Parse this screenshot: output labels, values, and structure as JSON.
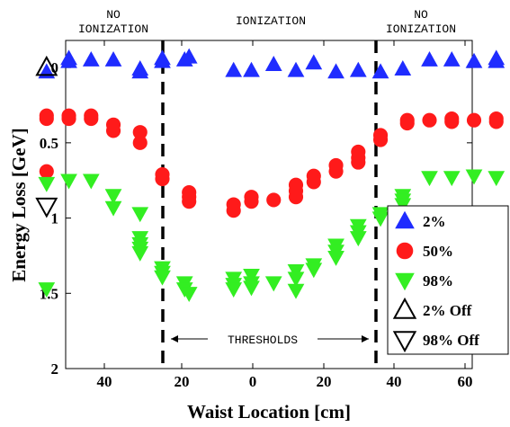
{
  "chart_data": {
    "type": "scatter",
    "xlabel": "Waist Location [cm]",
    "ylabel": "Energy Loss [GeV]",
    "x_tick_labels": [
      "40",
      "20",
      "0",
      "20",
      "40",
      "60"
    ],
    "y_tick_labels": [
      "0",
      "0.5",
      "1",
      "1.5",
      "2"
    ],
    "ylim": [
      0,
      2
    ],
    "y_inverted": true,
    "regions": {
      "left": "NO IONIZATION",
      "center": "IONIZATION",
      "right": "NO IONIZATION"
    },
    "threshold_label": "THRESHOLDS",
    "legend_placement": "right",
    "series": [
      {
        "name": "2%",
        "marker": "triangle-up",
        "color": "#1f2cff",
        "filled": true,
        "points": [
          {
            "x": -46,
            "y": 0.03
          },
          {
            "x": -41,
            "y": -0.06
          },
          {
            "x": -41,
            "y": -0.04
          },
          {
            "x": -36,
            "y": -0.05
          },
          {
            "x": -31,
            "y": -0.05
          },
          {
            "x": -25,
            "y": 0.01
          },
          {
            "x": -25,
            "y": 0.03
          },
          {
            "x": -20,
            "y": -0.04
          },
          {
            "x": -20,
            "y": -0.06
          },
          {
            "x": -15,
            "y": -0.05
          },
          {
            "x": -14,
            "y": -0.07
          },
          {
            "x": -4,
            "y": 0.02
          },
          {
            "x": 0,
            "y": 0.02
          },
          {
            "x": 5,
            "y": -0.02
          },
          {
            "x": 10,
            "y": 0.02
          },
          {
            "x": 14,
            "y": -0.03
          },
          {
            "x": 19,
            "y": 0.03
          },
          {
            "x": 24,
            "y": 0.02
          },
          {
            "x": 29,
            "y": 0.03
          },
          {
            "x": 34,
            "y": 0.01
          },
          {
            "x": 40,
            "y": -0.05
          },
          {
            "x": 45,
            "y": -0.05
          },
          {
            "x": 50,
            "y": -0.04
          },
          {
            "x": 55,
            "y": -0.04
          },
          {
            "x": 55,
            "y": -0.06
          }
        ]
      },
      {
        "name": "50%",
        "marker": "circle",
        "color": "#ff1a1a",
        "filled": true,
        "points": [
          {
            "x": -46,
            "y": 0.34
          },
          {
            "x": -46,
            "y": 0.32
          },
          {
            "x": -41,
            "y": 0.32
          },
          {
            "x": -41,
            "y": 0.34
          },
          {
            "x": -36,
            "y": 0.32
          },
          {
            "x": -36,
            "y": 0.34
          },
          {
            "x": -31,
            "y": 0.38
          },
          {
            "x": -31,
            "y": 0.42
          },
          {
            "x": -25,
            "y": 0.43
          },
          {
            "x": -25,
            "y": 0.5
          },
          {
            "x": -46,
            "y": 0.69
          },
          {
            "x": -20,
            "y": 0.71
          },
          {
            "x": -20,
            "y": 0.74
          },
          {
            "x": -14,
            "y": 0.83
          },
          {
            "x": -14,
            "y": 0.86
          },
          {
            "x": -14,
            "y": 0.89
          },
          {
            "x": -4,
            "y": 0.91
          },
          {
            "x": -4,
            "y": 0.95
          },
          {
            "x": 0,
            "y": 0.86
          },
          {
            "x": 0,
            "y": 0.89
          },
          {
            "x": 5,
            "y": 0.88
          },
          {
            "x": 10,
            "y": 0.78
          },
          {
            "x": 10,
            "y": 0.82
          },
          {
            "x": 10,
            "y": 0.86
          },
          {
            "x": 14,
            "y": 0.72
          },
          {
            "x": 14,
            "y": 0.76
          },
          {
            "x": 19,
            "y": 0.65
          },
          {
            "x": 19,
            "y": 0.69
          },
          {
            "x": 24,
            "y": 0.56
          },
          {
            "x": 24,
            "y": 0.6
          },
          {
            "x": 24,
            "y": 0.63
          },
          {
            "x": 29,
            "y": 0.45
          },
          {
            "x": 29,
            "y": 0.48
          },
          {
            "x": 35,
            "y": 0.37
          },
          {
            "x": 35,
            "y": 0.35
          },
          {
            "x": 40,
            "y": 0.35
          },
          {
            "x": 45,
            "y": 0.36
          },
          {
            "x": 45,
            "y": 0.34
          },
          {
            "x": 50,
            "y": 0.35
          },
          {
            "x": 55,
            "y": 0.36
          },
          {
            "x": 55,
            "y": 0.34
          }
        ]
      },
      {
        "name": "98%",
        "marker": "triangle-down",
        "color": "#33ee22",
        "filled": true,
        "points": [
          {
            "x": -46,
            "y": 0.77
          },
          {
            "x": -41,
            "y": 0.75
          },
          {
            "x": -36,
            "y": 0.75
          },
          {
            "x": -31,
            "y": 0.85
          },
          {
            "x": -31,
            "y": 0.93
          },
          {
            "x": -25,
            "y": 0.97
          },
          {
            "x": -25,
            "y": 1.13
          },
          {
            "x": -25,
            "y": 1.17
          },
          {
            "x": -25,
            "y": 1.2
          },
          {
            "x": -25,
            "y": 1.23
          },
          {
            "x": -46,
            "y": 1.47
          },
          {
            "x": -20,
            "y": 1.33
          },
          {
            "x": -20,
            "y": 1.36
          },
          {
            "x": -20,
            "y": 1.39
          },
          {
            "x": -15,
            "y": 1.43
          },
          {
            "x": -15,
            "y": 1.47
          },
          {
            "x": -14,
            "y": 1.5
          },
          {
            "x": -4,
            "y": 1.4
          },
          {
            "x": -4,
            "y": 1.44
          },
          {
            "x": -4,
            "y": 1.47
          },
          {
            "x": 0,
            "y": 1.38
          },
          {
            "x": 0,
            "y": 1.43
          },
          {
            "x": 0,
            "y": 1.46
          },
          {
            "x": 5,
            "y": 1.43
          },
          {
            "x": 10,
            "y": 1.35
          },
          {
            "x": 10,
            "y": 1.4
          },
          {
            "x": 10,
            "y": 1.48
          },
          {
            "x": 14,
            "y": 1.31
          },
          {
            "x": 14,
            "y": 1.34
          },
          {
            "x": 19,
            "y": 1.18
          },
          {
            "x": 19,
            "y": 1.22
          },
          {
            "x": 19,
            "y": 1.26
          },
          {
            "x": 24,
            "y": 1.05
          },
          {
            "x": 24,
            "y": 1.09
          },
          {
            "x": 24,
            "y": 1.13
          },
          {
            "x": 29,
            "y": 0.97
          },
          {
            "x": 29,
            "y": 1.0
          },
          {
            "x": 34,
            "y": 0.85
          },
          {
            "x": 34,
            "y": 0.88
          },
          {
            "x": 34,
            "y": 0.91
          },
          {
            "x": 34,
            "y": 0.97
          },
          {
            "x": 40,
            "y": 0.73
          },
          {
            "x": 45,
            "y": 0.73
          },
          {
            "x": 50,
            "y": 0.72
          },
          {
            "x": 55,
            "y": 0.73
          }
        ]
      },
      {
        "name": "2% Off",
        "marker": "triangle-up",
        "color": "#000000",
        "filled": false,
        "points": [
          {
            "x": -46,
            "y": 0.0
          }
        ]
      },
      {
        "name": "98% Off",
        "marker": "triangle-down",
        "color": "#000000",
        "filled": false,
        "points": [
          {
            "x": -46,
            "y": 0.92
          }
        ]
      }
    ]
  }
}
